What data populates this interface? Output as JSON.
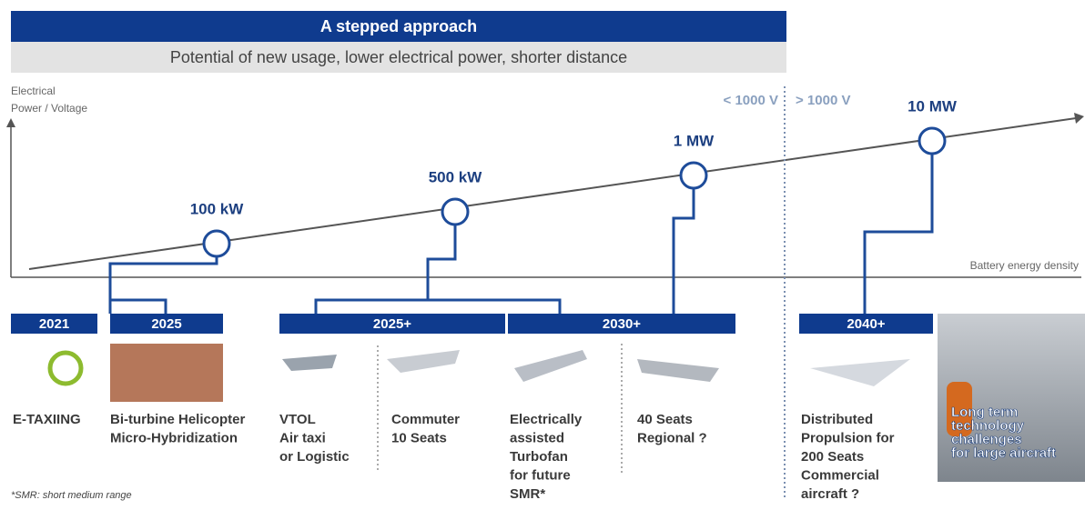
{
  "header": {
    "title": "A stepped approach",
    "subtitle": "Potential of new usage, lower electrical power, shorter distance"
  },
  "axis": {
    "y_label": [
      "Electrical",
      "Power / Voltage"
    ],
    "x_label": "Battery energy density"
  },
  "voltage": {
    "low": "< 1000 V",
    "high": "> 1000 V"
  },
  "milestones": [
    {
      "label": "100 kW"
    },
    {
      "label": "500 kW"
    },
    {
      "label": "1 MW"
    },
    {
      "label": "10 MW"
    }
  ],
  "periods": [
    {
      "label": "2021"
    },
    {
      "label": "2025"
    },
    {
      "label": "2025+"
    },
    {
      "label": "2030+"
    },
    {
      "label": "2040+"
    }
  ],
  "items": [
    {
      "lines": [
        "E-TAXIING"
      ]
    },
    {
      "lines": [
        "Bi-turbine Helicopter",
        "Micro-Hybridization"
      ]
    },
    {
      "lines": [
        "VTOL",
        "Air taxi",
        "or Logistic"
      ]
    },
    {
      "lines": [
        "Commuter",
        "10 Seats"
      ]
    },
    {
      "lines": [
        "Electrically",
        "assisted",
        "Turbofan",
        "for future",
        "SMR*"
      ]
    },
    {
      "lines": [
        "40 Seats",
        "Regional ?"
      ]
    },
    {
      "lines": [
        "Distributed",
        "Propulsion for",
        "200  Seats",
        "Commercial",
        "aircraft ?"
      ]
    }
  ],
  "long_term": {
    "lines": [
      "Long term",
      "technology",
      "challenges",
      "for large aircraft"
    ]
  },
  "footnote": "*SMR: short medium range"
}
